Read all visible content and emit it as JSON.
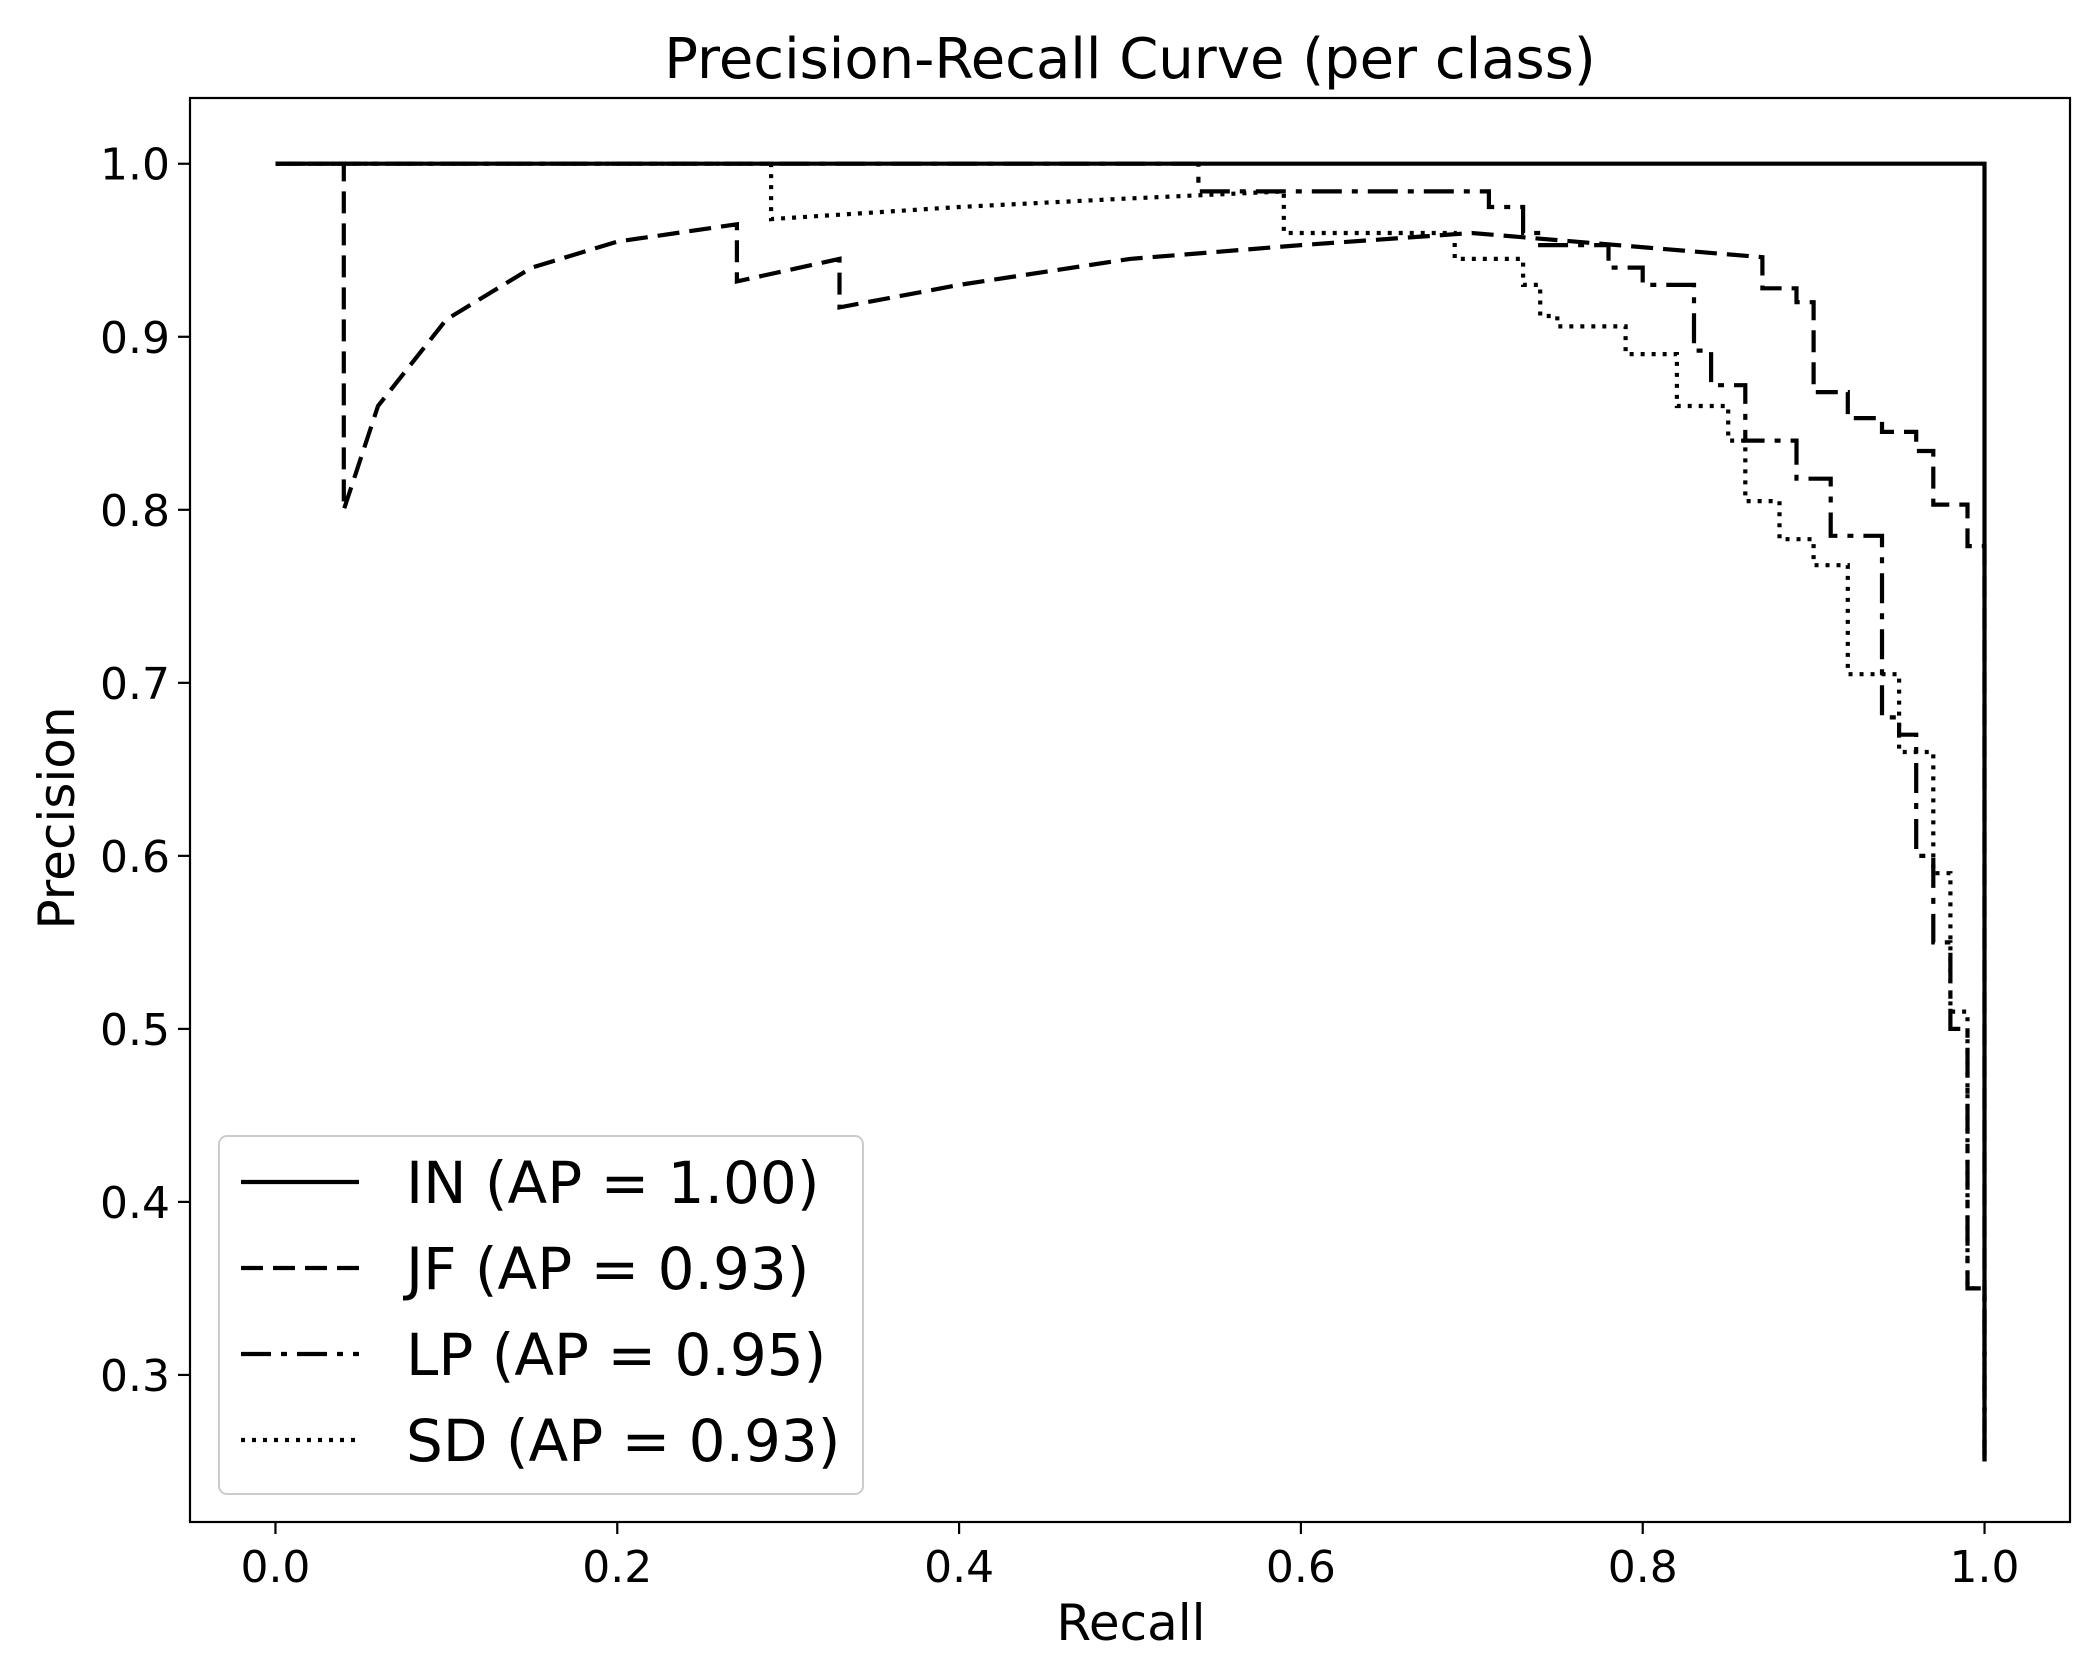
{
  "chart_data": {
    "type": "line",
    "title": "Precision-Recall Curve (per class)",
    "xlabel": "Recall",
    "ylabel": "Precision",
    "xlim": [
      -0.05,
      1.05
    ],
    "ylim": [
      0.215,
      1.038
    ],
    "xticks": [
      0.0,
      0.2,
      0.4,
      0.6,
      0.8,
      1.0
    ],
    "xtick_labels": [
      "0.0",
      "0.2",
      "0.4",
      "0.6",
      "0.8",
      "1.0"
    ],
    "yticks": [
      0.3,
      0.4,
      0.5,
      0.6,
      0.7,
      0.8,
      0.9,
      1.0
    ],
    "ytick_labels": [
      "0.3",
      "0.4",
      "0.5",
      "0.6",
      "0.7",
      "0.8",
      "0.9",
      "1.0"
    ],
    "grid": false,
    "legend_position": "lower-left",
    "series": [
      {
        "name": "IN",
        "label": "IN (AP = 1.00)",
        "dash": "solid",
        "recall": [
          0.0,
          1.0,
          1.0
        ],
        "precision": [
          1.0,
          1.0,
          0.25
        ]
      },
      {
        "name": "JF",
        "label": "JF (AP = 0.93)",
        "dash": "dashed",
        "recall": [
          0.0,
          0.04,
          0.04,
          0.06,
          0.1,
          0.15,
          0.2,
          0.27,
          0.27,
          0.33,
          0.33,
          0.4,
          0.5,
          0.6,
          0.7,
          0.87,
          0.87,
          0.89,
          0.89,
          0.9,
          0.9,
          0.92,
          0.92,
          0.94,
          0.94,
          0.96,
          0.96,
          0.97,
          0.97,
          0.99,
          0.99,
          1.0,
          1.0
        ],
        "precision": [
          1.0,
          1.0,
          0.8,
          0.86,
          0.91,
          0.94,
          0.955,
          0.965,
          0.932,
          0.945,
          0.917,
          0.93,
          0.945,
          0.953,
          0.96,
          0.946,
          0.928,
          0.928,
          0.92,
          0.92,
          0.868,
          0.868,
          0.853,
          0.853,
          0.845,
          0.845,
          0.834,
          0.834,
          0.803,
          0.803,
          0.779,
          0.779,
          0.25
        ]
      },
      {
        "name": "LP",
        "label": "LP (AP = 0.95)",
        "dash": "dashdot",
        "recall": [
          0.0,
          0.54,
          0.54,
          0.71,
          0.71,
          0.73,
          0.73,
          0.74,
          0.74,
          0.78,
          0.78,
          0.8,
          0.8,
          0.83,
          0.83,
          0.84,
          0.84,
          0.86,
          0.86,
          0.89,
          0.89,
          0.91,
          0.91,
          0.94,
          0.94,
          0.95,
          0.95,
          0.96,
          0.96,
          0.97,
          0.97,
          0.98,
          0.98,
          0.99,
          0.99,
          1.0,
          1.0
        ],
        "precision": [
          1.0,
          1.0,
          0.984,
          0.984,
          0.975,
          0.975,
          0.96,
          0.96,
          0.953,
          0.953,
          0.94,
          0.94,
          0.93,
          0.93,
          0.892,
          0.892,
          0.872,
          0.872,
          0.84,
          0.84,
          0.818,
          0.818,
          0.785,
          0.785,
          0.68,
          0.68,
          0.67,
          0.67,
          0.6,
          0.6,
          0.55,
          0.55,
          0.5,
          0.5,
          0.35,
          0.35,
          0.25
        ]
      },
      {
        "name": "SD",
        "label": "SD (AP = 0.93)",
        "dash": "dotted",
        "recall": [
          0.0,
          0.29,
          0.29,
          0.4,
          0.5,
          0.59,
          0.59,
          0.69,
          0.69,
          0.73,
          0.73,
          0.74,
          0.74,
          0.75,
          0.75,
          0.79,
          0.79,
          0.82,
          0.82,
          0.85,
          0.85,
          0.86,
          0.86,
          0.88,
          0.88,
          0.9,
          0.9,
          0.92,
          0.92,
          0.95,
          0.95,
          0.97,
          0.97,
          0.98,
          0.98,
          0.99,
          0.99,
          1.0,
          1.0
        ],
        "precision": [
          1.0,
          1.0,
          0.968,
          0.975,
          0.98,
          0.984,
          0.96,
          0.96,
          0.945,
          0.945,
          0.93,
          0.93,
          0.912,
          0.912,
          0.906,
          0.906,
          0.89,
          0.89,
          0.86,
          0.86,
          0.84,
          0.84,
          0.805,
          0.805,
          0.783,
          0.783,
          0.768,
          0.768,
          0.705,
          0.705,
          0.66,
          0.66,
          0.59,
          0.59,
          0.51,
          0.51,
          0.35,
          0.35,
          0.25
        ]
      }
    ]
  },
  "colors": {
    "line": "#000000",
    "background": "#ffffff",
    "legend_border": "#cccccc"
  }
}
